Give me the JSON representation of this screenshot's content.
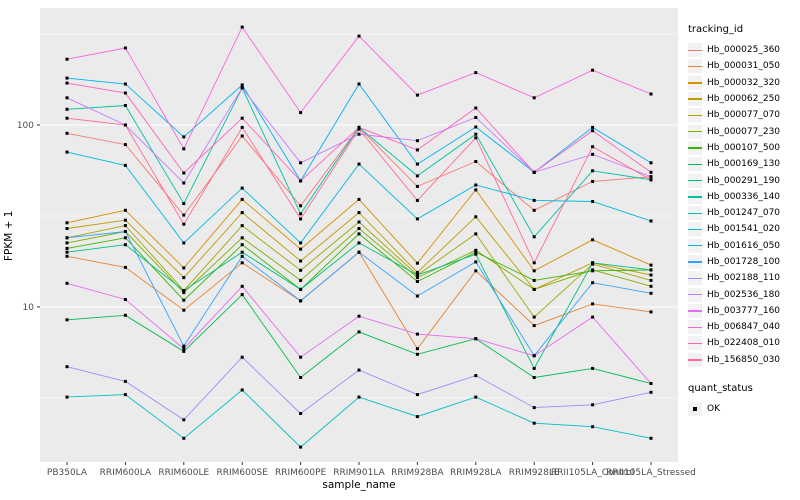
{
  "colors": {
    "panel_background": "#EBEBEB",
    "grid_major": "#FFFFFF",
    "grid_minor": "#FFFFFF",
    "tick_mark": "#333333",
    "tick_text": "#4D4D4D",
    "legend_key_background": "#F2F2F2",
    "point_marker": "#000000"
  },
  "axes": {
    "x": {
      "title": "sample_name"
    },
    "y": {
      "title": "FPKM + 1"
    }
  },
  "legend": {
    "tracking_title": "tracking_id",
    "quant_title": "quant_status",
    "quant_items": [
      {
        "label": "OK",
        "marker": "black-filled-square"
      }
    ]
  },
  "chart_data": {
    "type": "line",
    "title": "",
    "xlabel": "sample_name",
    "ylabel": "FPKM + 1",
    "y_scale": "log10",
    "ylim": [
      1.41,
      440
    ],
    "y_major_ticks": [
      100,
      10
    ],
    "y_minor_ticks": [
      316.2,
      31.62,
      3.162
    ],
    "grid": "on",
    "legend_position": "right",
    "point_marker": "filled-black-square",
    "categories": [
      "PB350LA",
      "RRIM600LA",
      "RRIM600LE",
      "RRIM600SE",
      "RRIM600PE",
      "RRIM901LA",
      "RRIM928BA",
      "RRIM928LA",
      "RRIM928LE",
      "RRII105LA_Control",
      "RRII105LA_Stressed"
    ],
    "series": [
      {
        "name": "Hb_000025_360",
        "color": "#F8766D",
        "values": [
          90,
          78,
          32,
          87,
          36,
          97,
          46,
          63,
          34,
          49,
          52
        ]
      },
      {
        "name": "Hb_000031_050",
        "color": "#EA8331",
        "values": [
          19,
          16.5,
          9.6,
          17.5,
          10.8,
          20,
          5.9,
          15.8,
          7.9,
          10.4,
          9.4
        ]
      },
      {
        "name": "Hb_000032_320",
        "color": "#D89000",
        "values": [
          29,
          34,
          16.4,
          39,
          20.8,
          39,
          17.4,
          44,
          15.8,
          23.4,
          17
        ]
      },
      {
        "name": "Hb_000062_250",
        "color": "#C09B00",
        "values": [
          27,
          30,
          14.5,
          33,
          17.9,
          33,
          15.5,
          31.3,
          12.5,
          17.5,
          15
        ]
      },
      {
        "name": "Hb_000077_070",
        "color": "#A3A500",
        "values": [
          24,
          28,
          12.3,
          28,
          15.9,
          29.3,
          15,
          25.2,
          8.8,
          17.2,
          14
        ]
      },
      {
        "name": "Hb_000077_230",
        "color": "#7CAE00",
        "values": [
          22.5,
          26,
          12,
          24,
          14,
          27,
          14.5,
          20.5,
          12.5,
          16,
          13
        ]
      },
      {
        "name": "Hb_000107_500",
        "color": "#39B600",
        "values": [
          21,
          24,
          10.9,
          22,
          12.5,
          25.2,
          13.8,
          20,
          14,
          15.8,
          16
        ]
      },
      {
        "name": "Hb_000169_130",
        "color": "#00BB4E",
        "values": [
          8.5,
          9,
          5.7,
          11.7,
          4.1,
          7.3,
          5.5,
          6.7,
          4.1,
          4.6,
          3.8
        ]
      },
      {
        "name": "Hb_000291_190",
        "color": "#00BF7D",
        "values": [
          20,
          22,
          12.3,
          20,
          12.5,
          22.5,
          15,
          19.5,
          4.6,
          17.5,
          16
        ]
      },
      {
        "name": "Hb_000336_140",
        "color": "#00C1A3",
        "values": [
          122,
          128,
          37,
          160,
          32.5,
          97,
          52.5,
          89,
          24.3,
          56,
          50
        ]
      },
      {
        "name": "Hb_001247_070",
        "color": "#00BFC4",
        "values": [
          3.2,
          3.3,
          1.9,
          3.5,
          1.7,
          3.2,
          2.5,
          3.2,
          2.3,
          2.2,
          1.9
        ]
      },
      {
        "name": "Hb_001541_020",
        "color": "#00BAE0",
        "values": [
          71,
          60,
          22.5,
          45,
          22.5,
          61,
          30.5,
          46.8,
          38.5,
          38,
          29.7
        ]
      },
      {
        "name": "Hb_001616_050",
        "color": "#00B0F6",
        "values": [
          181,
          168,
          86,
          166,
          49.3,
          168,
          61,
          97.5,
          55,
          97,
          62
        ]
      },
      {
        "name": "Hb_001728_100",
        "color": "#35A2FF",
        "values": [
          24,
          26,
          6.1,
          19,
          10.8,
          20,
          11.5,
          17.7,
          5.4,
          13.6,
          11.9
        ]
      },
      {
        "name": "Hb_002188_110",
        "color": "#9590FF",
        "values": [
          4.7,
          3.9,
          2.4,
          5.3,
          2.6,
          4.5,
          3.3,
          4.2,
          2.8,
          2.9,
          3.4
        ]
      },
      {
        "name": "Hb_002536_180",
        "color": "#C77CFF",
        "values": [
          141,
          100,
          48,
          160,
          62,
          89,
          82,
          110,
          55,
          69,
          52
        ]
      },
      {
        "name": "Hb_003777_160",
        "color": "#E76BF3",
        "values": [
          13.5,
          11,
          5.9,
          13,
          5.3,
          8.9,
          7.1,
          6.7,
          5.4,
          8.8,
          3.8
        ]
      },
      {
        "name": "Hb_006847_040",
        "color": "#FA62DB",
        "values": [
          230,
          265,
          74,
          345,
          117,
          308,
          146,
          194,
          141,
          200,
          148
        ]
      },
      {
        "name": "Hb_022408_010",
        "color": "#FF61BC",
        "values": [
          170,
          150,
          54.5,
          109,
          49.3,
          97,
          73,
          124,
          55,
          93,
          55
        ]
      },
      {
        "name": "Hb_156850_030",
        "color": "#FF6A98",
        "values": [
          109,
          100,
          28.5,
          97,
          30.5,
          95,
          38.5,
          85,
          17.5,
          76,
          50
        ]
      }
    ]
  }
}
